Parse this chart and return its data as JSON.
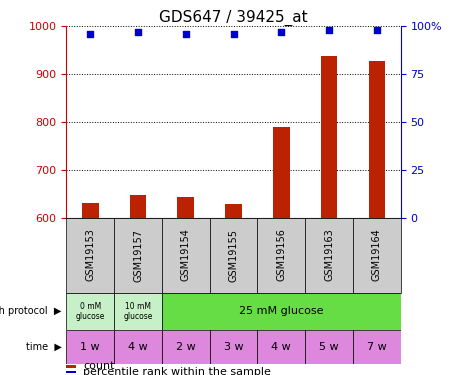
{
  "title": "GDS647 / 39425_at",
  "samples": [
    "GSM19153",
    "GSM19157",
    "GSM19154",
    "GSM19155",
    "GSM19156",
    "GSM19163",
    "GSM19164"
  ],
  "counts": [
    630,
    648,
    643,
    628,
    790,
    938,
    928
  ],
  "percentiles": [
    96,
    97,
    96,
    96,
    97,
    98,
    98
  ],
  "ylim_left": [
    600,
    1000
  ],
  "ylim_right": [
    0,
    100
  ],
  "yticks_left": [
    600,
    700,
    800,
    900,
    1000
  ],
  "yticks_right": [
    0,
    25,
    50,
    75,
    100
  ],
  "bar_color": "#bb2200",
  "scatter_color": "#0000cc",
  "sample_bg": "#cccccc",
  "left_axis_color": "#cc0000",
  "right_axis_color": "#0000cc",
  "growth_green_light": "#c8f0c8",
  "growth_green": "#66dd44",
  "time_pink": "#dd88dd",
  "time_labels": [
    "1 w",
    "4 w",
    "2 w",
    "3 w",
    "4 w",
    "5 w",
    "7 w"
  ],
  "title_fontsize": 11,
  "tick_fontsize": 8,
  "sample_fontsize": 7,
  "annot_fontsize": 7,
  "legend_fontsize": 8
}
